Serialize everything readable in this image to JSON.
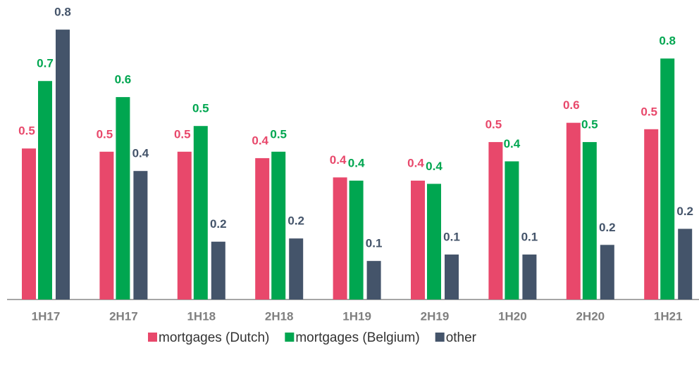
{
  "chart_data": {
    "type": "bar",
    "categories": [
      "1H17",
      "2H17",
      "1H18",
      "2H18",
      "1H19",
      "2H19",
      "1H20",
      "2H20",
      "1H21"
    ],
    "series": [
      {
        "name": "mortgages (Dutch)",
        "color": "#e8486b",
        "values": [
          0.47,
          0.46,
          0.46,
          0.44,
          0.38,
          0.37,
          0.49,
          0.55,
          0.53
        ],
        "value_labels": [
          "0.5",
          "0.5",
          "0.5",
          "0.4",
          "0.4",
          "0.4",
          "0.5",
          "0.6",
          "0.5"
        ]
      },
      {
        "name": "mortgages (Belgium)",
        "color": "#00a650",
        "values": [
          0.68,
          0.63,
          0.54,
          0.46,
          0.37,
          0.36,
          0.43,
          0.49,
          0.75
        ],
        "value_labels": [
          "0.7",
          "0.6",
          "0.5",
          "0.5",
          "0.4",
          "0.4",
          "0.4",
          "0.5",
          "0.8"
        ]
      },
      {
        "name": "other",
        "color": "#44546a",
        "values": [
          0.84,
          0.4,
          0.18,
          0.19,
          0.12,
          0.14,
          0.14,
          0.17,
          0.22
        ],
        "value_labels": [
          "0.8",
          "0.4",
          "0.2",
          "0.2",
          "0.1",
          "0.1",
          "0.1",
          "0.2",
          "0.2"
        ]
      }
    ]
  }
}
